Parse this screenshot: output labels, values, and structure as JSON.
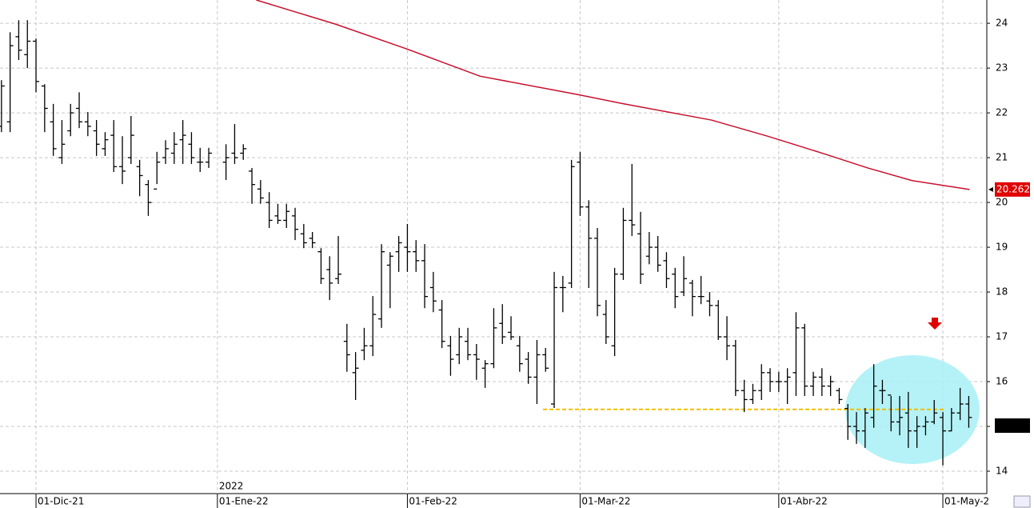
{
  "chart_data": {
    "type": "ohlc",
    "x": [
      -4,
      -3,
      -2,
      -1,
      0,
      1,
      2,
      3,
      4,
      5,
      6,
      7,
      8,
      9,
      10,
      11,
      12,
      13,
      14,
      15,
      16,
      17,
      18,
      19,
      20,
      22,
      23,
      24,
      25,
      26,
      27,
      28,
      29,
      30,
      31,
      32,
      33,
      34,
      35,
      36,
      37,
      38,
      39,
      40,
      41,
      42,
      43,
      44,
      45,
      46,
      47,
      48,
      49,
      50,
      51,
      52,
      53,
      54,
      55,
      56,
      57,
      58,
      59,
      60,
      61,
      62,
      63,
      64,
      65,
      66,
      67,
      68,
      69,
      70,
      71,
      72,
      73,
      74,
      75,
      76,
      77,
      78,
      79,
      80,
      81,
      82,
      83,
      84,
      85,
      86,
      87,
      88,
      89,
      90,
      91,
      92,
      93,
      94,
      95,
      96,
      97,
      98,
      99,
      100,
      101,
      102,
      103,
      104,
      105,
      106,
      107,
      108
    ],
    "open": [
      21.7,
      21.8,
      23.7,
      23.3,
      23.6,
      22.6,
      21.8,
      21.0,
      21.6,
      22.1,
      21.8,
      21.6,
      21.2,
      21.5,
      20.8,
      21.0,
      20.8,
      20.4,
      20.3,
      21.0,
      21.1,
      21.4,
      21.3,
      20.9,
      20.9,
      20.9,
      21.1,
      21.1,
      20.7,
      20.3,
      20.0,
      19.7,
      19.6,
      19.7,
      19.3,
      19.2,
      18.9,
      18.5,
      18.3,
      16.9,
      16.2,
      16.7,
      16.8,
      17.4,
      18.6,
      18.9,
      19.0,
      18.9,
      18.7,
      18.1,
      17.6,
      16.8,
      16.6,
      16.9,
      16.6,
      16.3,
      16.4,
      17.3,
      17.1,
      16.8,
      16.5,
      16.1,
      16.6,
      15.5,
      18.1,
      18.2,
      20.9,
      19.9,
      19.2,
      17.5,
      16.8,
      18.4,
      19.6,
      19.3,
      18.8,
      19.0,
      18.7,
      18.4,
      18.0,
      18.2,
      17.9,
      17.8,
      17.7,
      17.0,
      16.8,
      15.8,
      15.6,
      15.8,
      16.2,
      16.0,
      16.0,
      16.2,
      17.2,
      15.9,
      16.1,
      15.9,
      15.8,
      15.4,
      15.0,
      14.9,
      15.2,
      15.8,
      15.7,
      15.1,
      15.3,
      14.9,
      15.0,
      15.1,
      15.2,
      14.9,
      15.3,
      15.5
    ],
    "high": [
      22.73,
      23.8,
      24.07,
      24.07,
      23.66,
      22.64,
      22.2,
      21.84,
      22.2,
      22.46,
      22.02,
      21.84,
      21.57,
      21.84,
      21.48,
      21.93,
      20.95,
      20.5,
      21.13,
      21.39,
      21.57,
      21.84,
      21.57,
      21.22,
      21.22,
      21.3,
      21.75,
      21.3,
      20.77,
      20.5,
      20.23,
      19.97,
      19.97,
      19.88,
      19.52,
      19.34,
      18.98,
      18.8,
      19.25,
      17.29,
      16.66,
      17.2,
      17.91,
      19.07,
      18.89,
      19.25,
      19.52,
      19.16,
      19.07,
      18.45,
      17.82,
      17.02,
      17.2,
      17.2,
      16.84,
      16.48,
      17.64,
      17.73,
      17.46,
      17.02,
      16.66,
      16.93,
      16.75,
      18.45,
      18.36,
      20.95,
      21.13,
      20.05,
      19.43,
      17.82,
      18.54,
      19.88,
      20.86,
      19.79,
      19.34,
      19.25,
      18.89,
      18.54,
      18.8,
      18.27,
      18.36,
      18.0,
      17.82,
      17.46,
      16.93,
      16.04,
      15.95,
      16.39,
      16.3,
      16.22,
      16.3,
      17.55,
      17.29,
      16.22,
      16.3,
      16.13,
      15.86,
      15.5,
      15.32,
      15.41,
      16.39,
      16.04,
      15.68,
      15.68,
      15.77,
      15.23,
      15.23,
      15.59,
      15.32,
      15.41,
      15.86,
      15.68
    ],
    "low": [
      21.57,
      21.57,
      23.18,
      23.0,
      22.46,
      21.57,
      21.04,
      20.86,
      21.48,
      21.66,
      21.48,
      21.04,
      21.04,
      20.68,
      20.41,
      20.86,
      20.14,
      19.7,
      20.41,
      20.86,
      20.86,
      20.86,
      20.86,
      20.68,
      20.77,
      20.5,
      20.86,
      20.95,
      19.97,
      19.97,
      19.43,
      19.52,
      19.43,
      19.16,
      18.98,
      18.98,
      18.18,
      17.82,
      18.18,
      16.22,
      15.59,
      16.48,
      16.57,
      17.2,
      17.64,
      18.45,
      18.45,
      18.45,
      17.64,
      17.55,
      16.75,
      16.13,
      16.39,
      16.48,
      16.04,
      15.86,
      16.3,
      16.84,
      16.93,
      16.22,
      15.95,
      15.5,
      16.22,
      15.41,
      17.55,
      18.09,
      19.7,
      18.09,
      17.46,
      16.84,
      16.57,
      18.27,
      19.25,
      18.18,
      18.62,
      18.45,
      18.09,
      17.64,
      17.91,
      17.46,
      17.73,
      17.46,
      16.93,
      16.48,
      15.68,
      15.32,
      15.5,
      15.59,
      15.77,
      15.77,
      15.5,
      15.68,
      15.68,
      15.68,
      15.68,
      15.68,
      15.5,
      14.7,
      14.61,
      14.52,
      14.97,
      15.5,
      14.89,
      14.8,
      14.52,
      14.52,
      14.8,
      15.05,
      14.13,
      14.89,
      15.14,
      14.97
    ],
    "close": [
      22.6,
      23.5,
      23.4,
      23.6,
      22.7,
      22.1,
      21.2,
      21.3,
      22.0,
      21.8,
      21.7,
      21.3,
      21.4,
      20.8,
      20.7,
      21.5,
      20.6,
      20.0,
      20.9,
      21.2,
      21.3,
      21.5,
      21.0,
      20.9,
      21.1,
      21.0,
      21.0,
      21.2,
      20.4,
      20.1,
      19.6,
      19.6,
      19.8,
      19.4,
      19.1,
      19.1,
      18.3,
      18.2,
      18.4,
      16.6,
      16.3,
      16.8,
      17.5,
      18.9,
      18.8,
      19.1,
      18.9,
      18.7,
      17.9,
      17.8,
      16.9,
      16.5,
      17.0,
      16.6,
      16.5,
      16.4,
      17.2,
      17.0,
      17.0,
      16.4,
      16.1,
      16.6,
      16.3,
      18.1,
      18.1,
      20.8,
      19.9,
      19.2,
      17.7,
      17.0,
      18.4,
      19.6,
      19.5,
      18.4,
      19.0,
      18.6,
      18.3,
      17.9,
      18.3,
      17.9,
      17.9,
      17.7,
      17.0,
      16.8,
      15.8,
      15.6,
      15.8,
      16.2,
      16.0,
      16.0,
      16.1,
      17.2,
      15.9,
      16.1,
      15.9,
      16.0,
      15.6,
      15.0,
      14.9,
      15.3,
      15.9,
      15.8,
      15.1,
      15.2,
      14.9,
      15.0,
      15.1,
      15.3,
      14.9,
      15.3,
      15.5,
      15.2
    ],
    "moving_average": {
      "color": "#c8102e",
      "x": [
        25.5,
        34.7,
        42.6,
        51.4,
        62.7,
        68.1,
        78.2,
        84.7,
        91.2,
        96.3,
        101.4,
        108.1
      ],
      "values": [
        24.52,
        23.98,
        23.45,
        22.82,
        22.41,
        22.2,
        21.84,
        21.48,
        21.09,
        20.77,
        20.49,
        20.29
      ],
      "last_label": "20.262"
    },
    "support": {
      "color": "#f0c000",
      "x": [
        58.7,
        105.1
      ],
      "value": 15.38
    },
    "xlim": [
      -4.17,
      110.09
    ],
    "ylim": [
      13.5,
      24.52
    ],
    "yticks": [
      14,
      15,
      16,
      17,
      18,
      19,
      20,
      21,
      22,
      23,
      24
    ],
    "xticks": [
      {
        "value": 0,
        "label": "01-Dic-21"
      },
      {
        "value": 21,
        "label": "01-Ene-22"
      },
      {
        "value": 43,
        "label": "01-Feb-22"
      },
      {
        "value": 63,
        "label": "01-Mar-22"
      },
      {
        "value": 86,
        "label": "01-Abr-22"
      },
      {
        "value": 105,
        "label": "01-May-2"
      }
    ],
    "year_label": "2022",
    "grid": true
  }
}
